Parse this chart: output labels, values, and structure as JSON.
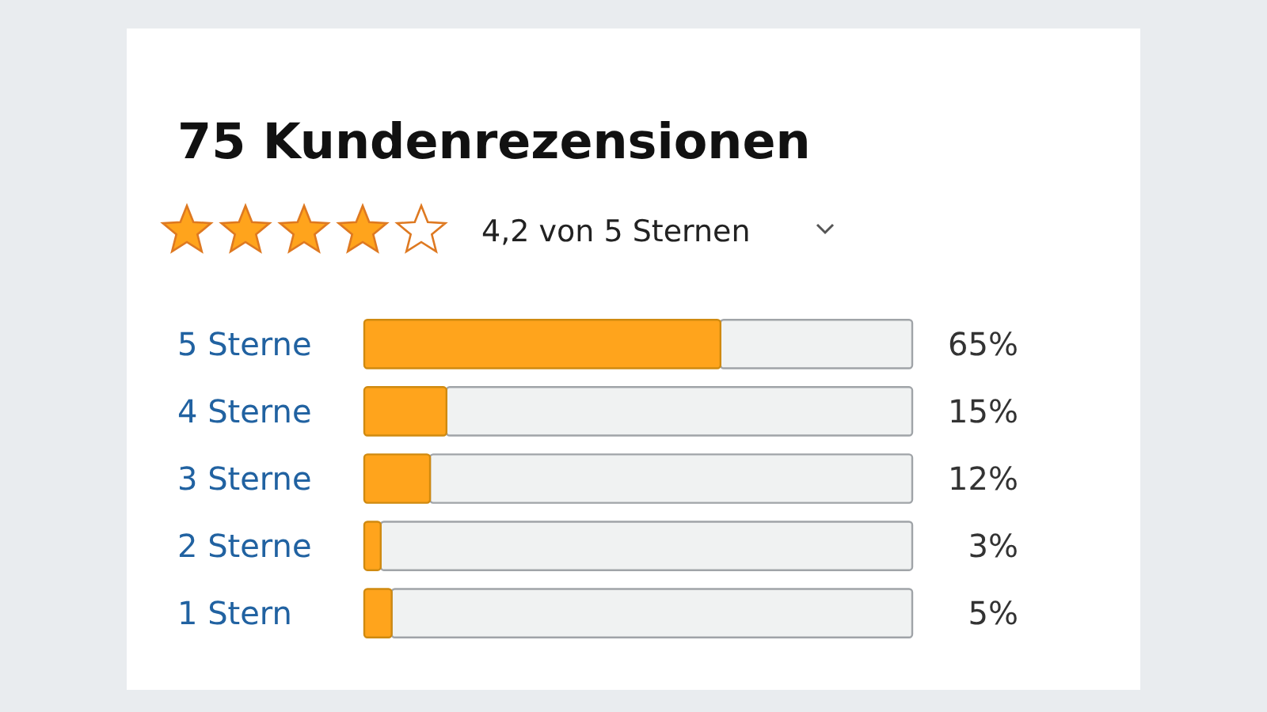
{
  "chart_data": {
    "type": "bar",
    "orientation": "horizontal",
    "title": "75 Kundenrezensionen",
    "subtitle": "4,2 von 5 Sternen",
    "categories": [
      "5 Sterne",
      "4 Sterne",
      "3 Sterne",
      "2 Sterne",
      "1 Stern"
    ],
    "values": [
      65,
      15,
      12,
      3,
      5
    ],
    "value_labels": [
      "65%",
      "15%",
      "12%",
      "3%",
      "5%"
    ],
    "color": "#ffa41c",
    "xlim": [
      0,
      100
    ]
  }
}
